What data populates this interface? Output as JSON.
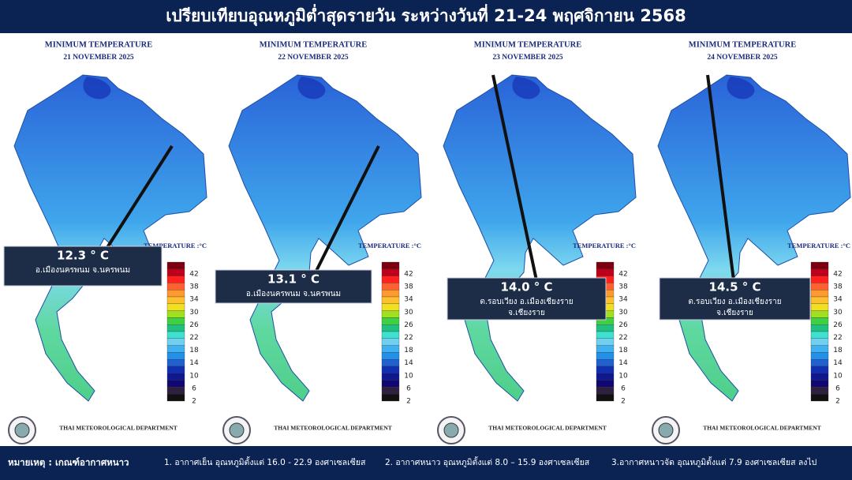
{
  "header": {
    "title": "เปรียบเทียบอุณหภูมิต่ำสุดรายวัน ระหว่างวันที่ 21-24 พฤศจิกายน 2568"
  },
  "map_heading": "MINIMUM TEMPERATURE",
  "agency": "THAI METEOROLOGICAL DEPARTMENT",
  "scale": {
    "title": "TEMPERATURE :°C",
    "ticks": [
      42,
      38,
      34,
      30,
      26,
      22,
      18,
      14,
      10,
      6,
      2
    ]
  },
  "panels": [
    {
      "date": "21 NOVEMBER 2025",
      "temperature": "12.3 ° C",
      "location": [
        "อ.เมืองนครพนม จ.นครพนม"
      ]
    },
    {
      "date": "22 NOVEMBER 2025",
      "temperature": "13.1 ° C",
      "location": [
        "อ.เมืองนครพนม จ.นครพนม"
      ]
    },
    {
      "date": "23 NOVEMBER 2025",
      "temperature": "14.0 ° C",
      "location": [
        "ต.รอบเวียง อ.เมืองเชียงราย",
        "จ.เชียงราย"
      ]
    },
    {
      "date": "24 NOVEMBER 2025",
      "temperature": "14.5 ° C",
      "location": [
        "ต.รอบเวียง อ.เมืองเชียงราย",
        "จ.เชียงราย"
      ]
    }
  ],
  "note": {
    "label": "หมายเหตุ : เกณฑ์อากาศหนาว",
    "items": [
      "1. อากาศเย็น อุณหภูมิตั้งแต่ 16.0 - 22.9 องศาเซลเซียส",
      "2. อากาศหนาว อุณหภูมิตั้งแต่ 8.0 – 15.9 องศาเซลเซียส",
      "3.อากาศหนาวจัด อุณหภูมิตั้งแต่ 7.9 องศาเซลเซียส ลงไป"
    ]
  }
}
